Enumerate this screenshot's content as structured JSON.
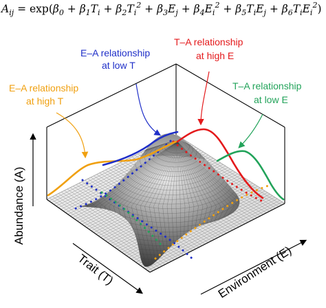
{
  "equation": {
    "lhs": "A",
    "lhs_sub": "ij",
    "equals": " = exp(",
    "terms": [
      {
        "coef": "β",
        "sub": "0",
        "var": "",
        "text": ""
      },
      {
        "coef": "β",
        "sub": "1",
        "text": "T",
        "vsub": "i",
        "sup": ""
      },
      {
        "coef": "β",
        "sub": "2",
        "text": "T",
        "vsub": "i",
        "sup": "2"
      },
      {
        "coef": "β",
        "sub": "3",
        "text": "E",
        "vsub": "j",
        "sup": ""
      },
      {
        "coef": "β",
        "sub": "4",
        "text": "E",
        "vsub": "i",
        "sup": "2"
      },
      {
        "coef": "β",
        "sub": "5",
        "text": "T",
        "vsub": "i",
        "text2": "E",
        "vsub2": "j",
        "sup": ""
      },
      {
        "coef": "β",
        "sub": "6",
        "text": "T",
        "vsub": "i",
        "text2": "E",
        "vsub2": "i",
        "sup": "2"
      }
    ],
    "close": ")"
  },
  "labels": {
    "ea_low_t": [
      "E–A relationship",
      "at low T"
    ],
    "ea_high_t": [
      "E–A relationship",
      "at high T"
    ],
    "ta_high_e": [
      "T–A relationship",
      "at high E"
    ],
    "ta_low_e": [
      "T–A relationship",
      "at low E"
    ]
  },
  "axes": {
    "abundance": "Abundance (A)",
    "trait": "Trait (T)",
    "environment": "Environment (E)"
  },
  "colors": {
    "ea_low_t": "#1f2fc8",
    "ea_high_t": "#f0a010",
    "ta_high_e": "#e41a1c",
    "ta_low_e": "#22a35a"
  }
}
